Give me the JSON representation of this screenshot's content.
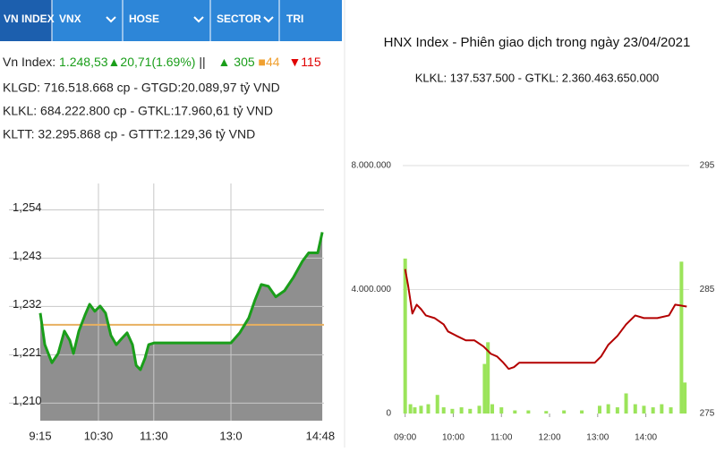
{
  "tabs": [
    "VN INDEX",
    "VNX",
    "HOSE",
    "SECTOR",
    "TRI"
  ],
  "info": {
    "index": {
      "label": "Vn Index:",
      "value": "1.248,53",
      "change": "▲20,71(1.69%)",
      "sep": "||",
      "up": "▲ 305",
      "flat": "■44",
      "down": "▼115"
    },
    "lines": [
      "KLGD: 716.518.668 cp - GTGD:20.089,97 tỷ VND",
      "KLKL: 684.222.800 cp - GTKL:17.960,61 tỷ VND",
      "KLTT: 32.295.868 cp - GTTT:2.129,36 tỷ VND"
    ]
  },
  "chart_data": [
    {
      "type": "area",
      "color": "#1a9e1a",
      "fill": "#8f8f8f",
      "x": [
        0,
        1.6,
        4.1,
        6.3,
        8.5,
        10.4,
        11.7,
        13.6,
        15.8,
        17.4,
        19.2,
        21.1,
        23.0,
        24.9,
        26.8,
        28.7,
        30.6,
        32.5,
        33.8,
        35.3,
        36.9,
        38.2,
        40.1,
        67.2,
        70.3,
        73.5,
        75.7,
        77.9,
        80.4,
        83.0,
        86.1,
        89.3,
        92.4,
        94.6,
        97.8,
        99.4
      ],
      "values": [
        1230.5,
        1223.3,
        1219.2,
        1221.3,
        1226.4,
        1224.3,
        1221.3,
        1226.4,
        1230.1,
        1232.5,
        1230.9,
        1232.1,
        1230.5,
        1225.4,
        1223.3,
        1224.7,
        1226.0,
        1223.3,
        1218.6,
        1217.6,
        1220.2,
        1223.3,
        1223.7,
        1223.7,
        1226.0,
        1229.4,
        1233.5,
        1237.0,
        1236.6,
        1234.2,
        1235.6,
        1238.7,
        1242.3,
        1244.2,
        1244.2,
        1248.9
      ],
      "reference": 1227.82,
      "reference_color": "#e8b060",
      "xlim": [
        0,
        100
      ],
      "ylim": [
        1206,
        1260
      ],
      "xticks": [
        {
          "value": 0,
          "label": "9:15"
        },
        {
          "value": 20.5,
          "label": "10:30"
        },
        {
          "value": 40,
          "label": "11:30"
        },
        {
          "value": 67.2,
          "label": "13:0"
        },
        {
          "value": 98.7,
          "label": "14:48"
        }
      ],
      "yticks": [
        {
          "value": 1210,
          "label": "1,210"
        },
        {
          "value": 1221,
          "label": "1,221"
        },
        {
          "value": 1232,
          "label": "1,232"
        },
        {
          "value": 1243,
          "label": "1,243"
        },
        {
          "value": 1254,
          "label": "1,254"
        }
      ],
      "grid": true
    },
    {
      "type": "combo",
      "title": "HNX Index - Phiên giao dịch trong ngày 23/04/2021",
      "subtitle": "KLKL: 137.537.500 - GTKL: 2.360.463.650.000",
      "xlim": [
        8.95,
        14.9
      ],
      "ylim": [
        0,
        8000000
      ],
      "y2lim": [
        275,
        295
      ],
      "xticks": [
        {
          "value": 9,
          "label": "09:00"
        },
        {
          "value": 10,
          "label": "10:00"
        },
        {
          "value": 11,
          "label": "11:00"
        },
        {
          "value": 12,
          "label": "12:00"
        },
        {
          "value": 13,
          "label": "13:00"
        },
        {
          "value": 14,
          "label": "14:00"
        }
      ],
      "yticks": [
        0,
        {
          "value": 4000000,
          "label": "4.000.000"
        },
        {
          "value": 8000000,
          "label": "8.000.000"
        }
      ],
      "y2ticks": [
        275,
        285,
        295
      ],
      "grid": true,
      "series": [
        {
          "kind": "bar",
          "color": "#9be45a",
          "x": [
            9.0,
            9.11,
            9.2,
            9.33,
            9.48,
            9.67,
            9.8,
            9.98,
            10.17,
            10.35,
            10.54,
            10.65,
            10.72,
            10.81,
            11.0,
            11.28,
            11.56,
            11.93,
            12.3,
            12.67,
            13.04,
            13.22,
            13.41,
            13.59,
            13.78,
            13.96,
            14.15,
            14.33,
            14.52,
            14.74,
            14.81
          ],
          "values": [
            5000000,
            300000,
            200000,
            250000,
            300000,
            600000,
            200000,
            150000,
            200000,
            150000,
            250000,
            1600000,
            2300000,
            300000,
            200000,
            100000,
            100000,
            80000,
            100000,
            100000,
            250000,
            300000,
            200000,
            650000,
            300000,
            250000,
            200000,
            300000,
            200000,
            4900000,
            1000000
          ]
        },
        {
          "kind": "line",
          "axis": "y2",
          "color": "#b30000",
          "x": [
            9.0,
            9.06,
            9.15,
            9.24,
            9.33,
            9.43,
            9.61,
            9.8,
            9.89,
            10.07,
            10.26,
            10.44,
            10.63,
            10.78,
            10.91,
            11.04,
            11.15,
            11.26,
            11.37,
            12.94,
            13.07,
            13.22,
            13.41,
            13.59,
            13.78,
            13.96,
            14.24,
            14.48,
            14.61,
            14.85
          ],
          "values": [
            286.65,
            285.36,
            283.06,
            283.78,
            283.42,
            282.91,
            282.7,
            282.19,
            281.62,
            281.26,
            280.9,
            280.9,
            280.4,
            279.82,
            279.6,
            279.1,
            278.6,
            278.74,
            279.1,
            279.1,
            279.6,
            280.54,
            281.26,
            282.19,
            282.91,
            282.7,
            282.7,
            282.91,
            283.78,
            283.63
          ]
        }
      ]
    }
  ]
}
